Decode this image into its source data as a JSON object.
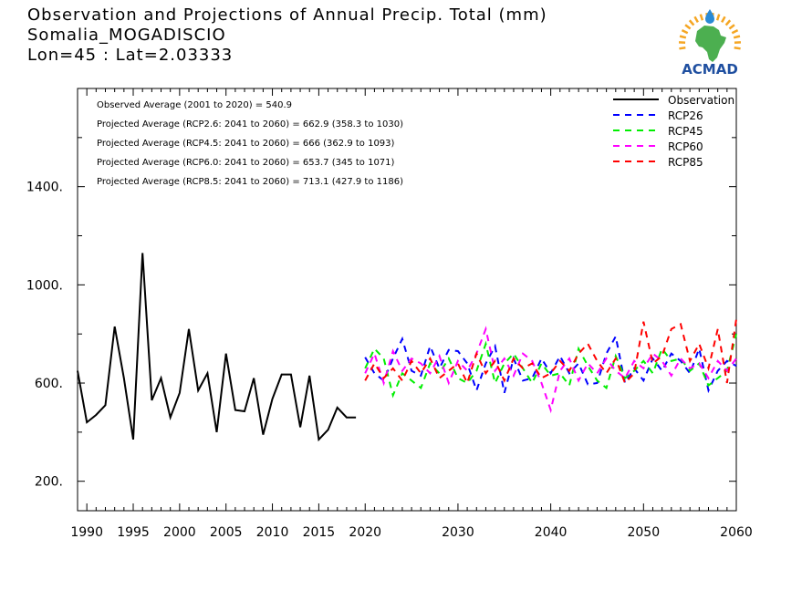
{
  "header": {
    "title": "Observation and Projections of Annual Precip. Total (mm)",
    "station": "Somalia_MOGADISCIO",
    "coords": "Lon=45 : Lat=2.03333"
  },
  "logo": {
    "text": "ACMAD",
    "colors": {
      "africa": "#4caf50",
      "sun": "#f5a623",
      "drop": "#2a8ad4",
      "text": "#1f4fa0"
    }
  },
  "stats": [
    "Observed Average (2001 to 2020) = 540.9",
    "Projected Average (RCP2.6: 2041 to 2060) = 662.9 (358.3 to 1030)",
    "Projected Average (RCP4.5: 2041 to 2060) = 666 (362.9 to 1093)",
    "Projected Average (RCP6.0: 2041 to 2060) = 653.7 (345 to 1071)",
    "Projected Average (RCP8.5: 2041 to 2060) = 713.1 (427.9 to 1186)"
  ],
  "chart_data": {
    "type": "line",
    "xlim": [
      1989,
      2060
    ],
    "ylim": [
      80,
      1800
    ],
    "x_ticks": [
      1990,
      1995,
      2000,
      2005,
      2010,
      2015,
      2020,
      2030,
      2040,
      2050,
      2060
    ],
    "y_ticks": [
      200,
      600,
      1000,
      1400
    ],
    "y_tick_labels": [
      "200.",
      "600.",
      "1000.",
      "1400."
    ],
    "grid": false,
    "legend_position": "top-right",
    "observation": {
      "name": "Observation",
      "color": "#000000",
      "x": [
        1989,
        1990,
        1991,
        1992,
        1993,
        1994,
        1995,
        1996,
        1997,
        1998,
        1999,
        2000,
        2001,
        2002,
        2003,
        2004,
        2005,
        2006,
        2007,
        2008,
        2009,
        2010,
        2011,
        2012,
        2013,
        2014,
        2015,
        2016,
        2017,
        2018,
        2019
      ],
      "y": [
        650,
        440,
        470,
        510,
        830,
        620,
        370,
        1130,
        530,
        620,
        460,
        560,
        820,
        570,
        640,
        400,
        720,
        490,
        485,
        620,
        390,
        535,
        635,
        635,
        420,
        630,
        370,
        410,
        500,
        460,
        460
      ]
    },
    "series": [
      {
        "name": "RCP26",
        "color": "#0000ff",
        "x": [
          2020,
          2021,
          2022,
          2023,
          2024,
          2025,
          2026,
          2027,
          2028,
          2029,
          2030,
          2031,
          2032,
          2033,
          2034,
          2035,
          2036,
          2037,
          2038,
          2039,
          2040,
          2041,
          2042,
          2043,
          2044,
          2045,
          2046,
          2047,
          2048,
          2049,
          2050,
          2051,
          2052,
          2053,
          2054,
          2055,
          2056,
          2057,
          2058,
          2059,
          2060
        ],
        "y": [
          705,
          640,
          610,
          700,
          780,
          650,
          630,
          750,
          660,
          735,
          730,
          680,
          570,
          680,
          750,
          560,
          700,
          610,
          620,
          700,
          640,
          710,
          640,
          680,
          595,
          600,
          720,
          790,
          600,
          660,
          610,
          700,
          650,
          720,
          690,
          640,
          740,
          570,
          650,
          690,
          670
        ]
      },
      {
        "name": "RCP45",
        "color": "#00ee00",
        "x": [
          2020,
          2021,
          2022,
          2023,
          2024,
          2025,
          2026,
          2027,
          2028,
          2029,
          2030,
          2031,
          2032,
          2033,
          2034,
          2035,
          2036,
          2037,
          2038,
          2039,
          2040,
          2041,
          2042,
          2043,
          2044,
          2045,
          2046,
          2047,
          2048,
          2049,
          2050,
          2051,
          2052,
          2053,
          2054,
          2055,
          2056,
          2057,
          2058,
          2059,
          2060
        ],
        "y": [
          660,
          740,
          700,
          550,
          640,
          610,
          580,
          680,
          640,
          700,
          620,
          600,
          650,
          760,
          600,
          680,
          720,
          660,
          600,
          680,
          630,
          640,
          590,
          740,
          670,
          610,
          580,
          710,
          620,
          650,
          690,
          640,
          740,
          690,
          700,
          650,
          680,
          590,
          620,
          650,
          800
        ]
      },
      {
        "name": "RCP60",
        "color": "#ff00ff",
        "x": [
          2020,
          2021,
          2022,
          2023,
          2024,
          2025,
          2026,
          2027,
          2028,
          2029,
          2030,
          2031,
          2032,
          2033,
          2034,
          2035,
          2036,
          2037,
          2038,
          2039,
          2040,
          2041,
          2042,
          2043,
          2044,
          2045,
          2046,
          2047,
          2048,
          2049,
          2050,
          2051,
          2052,
          2053,
          2054,
          2055,
          2056,
          2057,
          2058,
          2059,
          2060
        ],
        "y": [
          640,
          720,
          600,
          730,
          650,
          700,
          680,
          640,
          710,
          600,
          690,
          650,
          720,
          820,
          650,
          700,
          630,
          720,
          690,
          600,
          490,
          650,
          700,
          610,
          680,
          640,
          700,
          650,
          620,
          690,
          660,
          720,
          690,
          630,
          700,
          660,
          680,
          620,
          690,
          650,
          700
        ]
      },
      {
        "name": "RCP85",
        "color": "#ff0000",
        "x": [
          2020,
          2021,
          2022,
          2023,
          2024,
          2025,
          2026,
          2027,
          2028,
          2029,
          2030,
          2031,
          2032,
          2033,
          2034,
          2035,
          2036,
          2037,
          2038,
          2039,
          2040,
          2041,
          2042,
          2043,
          2044,
          2045,
          2046,
          2047,
          2048,
          2049,
          2050,
          2051,
          2052,
          2053,
          2054,
          2055,
          2056,
          2057,
          2058,
          2059,
          2060
        ],
        "y": [
          610,
          680,
          620,
          660,
          610,
          690,
          640,
          700,
          620,
          650,
          680,
          600,
          720,
          640,
          690,
          610,
          700,
          660,
          680,
          620,
          640,
          690,
          650,
          720,
          760,
          690,
          640,
          700,
          600,
          640,
          850,
          680,
          710,
          820,
          840,
          690,
          760,
          660,
          820,
          600,
          860
        ]
      }
    ]
  }
}
